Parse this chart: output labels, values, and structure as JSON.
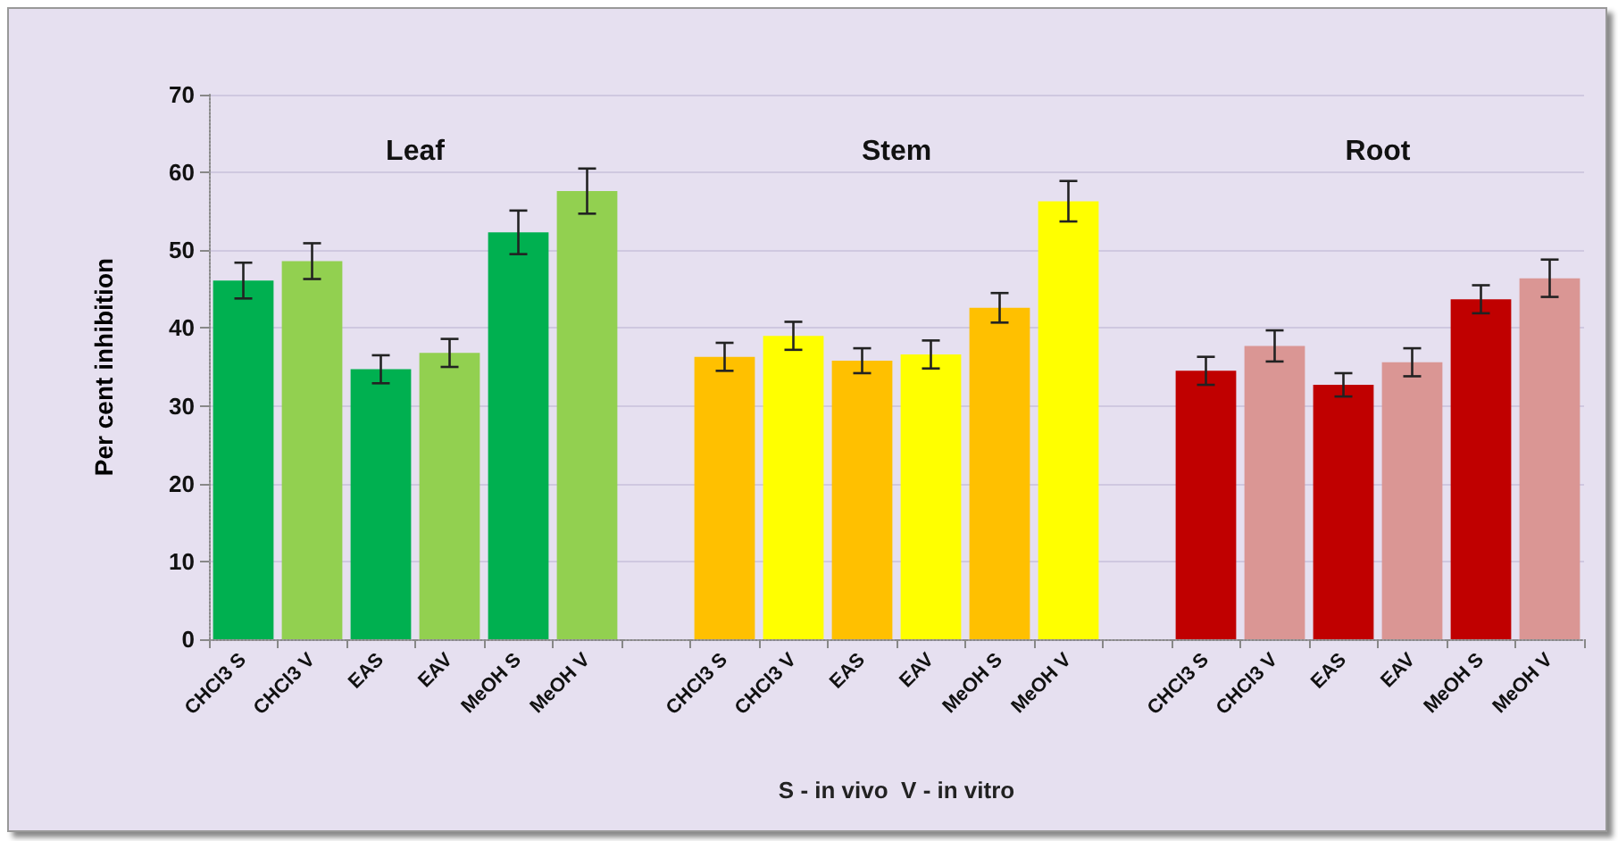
{
  "chart_data": {
    "type": "bar",
    "ylabel": "Per cent inhibition",
    "xlabel": "S - in vivo  V - in vitro",
    "annotations": [
      "Leaf",
      "Stem",
      "Root"
    ],
    "categories": [
      "CHCl3 S",
      "CHCl3 V",
      "EAS",
      "EAV",
      "MeOH S",
      "MeOH V",
      null,
      "CHCl3 S",
      "CHCl3 V",
      "EAS",
      "EAV",
      "MeOH S",
      "MeOH V",
      null,
      "CHCl3 S",
      "CHCl3 V",
      "EAS",
      "EAV",
      "MeOH S",
      "MeOH V"
    ],
    "values": [
      46.1,
      48.6,
      34.7,
      36.8,
      52.3,
      57.6,
      null,
      36.3,
      39.0,
      35.8,
      36.6,
      42.6,
      56.3,
      null,
      34.5,
      37.7,
      32.7,
      35.6,
      43.7,
      46.4
    ],
    "errors": [
      2.3,
      2.3,
      1.8,
      1.8,
      2.8,
      2.9,
      null,
      1.8,
      1.8,
      1.6,
      1.8,
      1.9,
      2.6,
      null,
      1.8,
      2.0,
      1.5,
      1.8,
      1.8,
      2.4
    ],
    "colors": [
      "#00b050",
      "#92d050",
      "#00b050",
      "#92d050",
      "#00b050",
      "#92d050",
      "#00b050",
      "#ffc000",
      "#ffff00",
      "#ffc000",
      "#ffff00",
      "#ffc000",
      "#ffff00",
      "#ffc000",
      "#c00000",
      "#da9694",
      "#c00000",
      "#da9694",
      "#c00000",
      "#da9694"
    ],
    "ylim": [
      0,
      70
    ],
    "yticks": [
      0,
      10,
      20,
      30,
      40,
      50,
      60,
      70
    ],
    "grid": "y"
  }
}
